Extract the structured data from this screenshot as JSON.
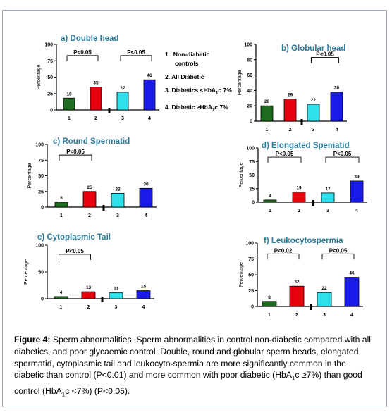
{
  "legend": {
    "items": [
      "1 . Non-diabetic",
      "controls",
      "2. All Diabetic",
      "3. Diabetics <HbA",
      "4. Diabetic ≥HbA"
    ],
    "sub": [
      "",
      "",
      "",
      "1",
      "1"
    ],
    "suffix": [
      "",
      "",
      "",
      "c 7%",
      "c 7%"
    ]
  },
  "caption": {
    "label": "Figure 4:",
    "text": "Sperm abnormalities. Sperm abnormalities in control non-diabetic compared with all diabetics, and poor glycaemic control. Double, round and globular sperm heads, elongated spermatid, cytoplasmic tail and leukocyto-spermia are more significantly common in the diabetic than control (P<0.01) and more common with poor diabetic (HbA",
    "sub1": "1",
    "text2": "c ≥7%) than good control (HbA",
    "sub2": "1",
    "text3": "c <7%) (P<0.05)."
  },
  "colors": [
    "#1f6b1f",
    "#e8000f",
    "#2de0ea",
    "#1a1ae6"
  ],
  "chart_data": [
    {
      "id": "a",
      "type": "bar",
      "title": "a)  Double head",
      "ylabel": "Percentage",
      "categories": [
        "1",
        "2",
        "3",
        "4"
      ],
      "values": [
        18,
        35,
        27,
        46
      ],
      "ylim": [
        0,
        100
      ],
      "yticks": [
        0,
        25,
        50,
        75,
        100
      ],
      "annotations": [
        {
          "text": "P<0.05",
          "from": 1,
          "to": 2
        },
        {
          "text": "P<0.05",
          "from": 3,
          "to": 4
        }
      ]
    },
    {
      "id": "b",
      "type": "bar",
      "title": "b)  Globular  head",
      "ylabel": "Percentage",
      "categories": [
        "1",
        "2",
        "3",
        "4"
      ],
      "values": [
        20,
        29,
        22,
        38
      ],
      "ylim": [
        0,
        100
      ],
      "yticks": [
        0,
        20,
        40,
        60,
        80,
        100
      ],
      "annotations": [
        {
          "text": "P<0.05",
          "from": 3,
          "to": 4
        }
      ]
    },
    {
      "id": "c",
      "type": "bar",
      "title": "c)  Round Spermatid",
      "ylabel": "Percentage",
      "categories": [
        "1",
        "2",
        "3",
        "4"
      ],
      "values": [
        8,
        25,
        22,
        30
      ],
      "ylim": [
        0,
        100
      ],
      "yticks": [
        0,
        25,
        50,
        75,
        100
      ],
      "annotations": [
        {
          "text": "P<0.05",
          "from": 1,
          "to": 2
        }
      ]
    },
    {
      "id": "d",
      "type": "bar",
      "title": "d)  Elongated Spematid",
      "ylabel": "Percentage",
      "categories": [
        "1",
        "2",
        "3",
        "4"
      ],
      "values": [
        4,
        19,
        17,
        39
      ],
      "ylim": [
        0,
        100
      ],
      "yticks": [
        0,
        25,
        50,
        75,
        100
      ],
      "annotations": [
        {
          "text": "P<0.05",
          "from": 1,
          "to": 2
        },
        {
          "text": "P<0.05",
          "from": 3,
          "to": 4
        }
      ]
    },
    {
      "id": "e",
      "type": "bar",
      "title": "e)  Cytoplasmic Tail",
      "ylabel": "Percentage",
      "categories": [
        "1",
        "2",
        "3",
        "4"
      ],
      "values": [
        4,
        13,
        11,
        15
      ],
      "ylim": [
        0,
        100
      ],
      "yticks": [
        0,
        50,
        100
      ],
      "annotations": [
        {
          "text": "P<0.05",
          "from": 1,
          "to": 2
        }
      ]
    },
    {
      "id": "f",
      "type": "bar",
      "title": "f)  Leukocytospermia",
      "ylabel": "Percentage",
      "categories": [
        "1",
        "2",
        "3",
        "4"
      ],
      "values": [
        8,
        32,
        22,
        46
      ],
      "ylim": [
        0,
        100
      ],
      "yticks": [
        0,
        25,
        50,
        75,
        100
      ],
      "annotations": [
        {
          "text": "P<0.02",
          "from": 1,
          "to": 2
        },
        {
          "text": "P<0.05",
          "from": 3,
          "to": 4
        }
      ]
    }
  ]
}
